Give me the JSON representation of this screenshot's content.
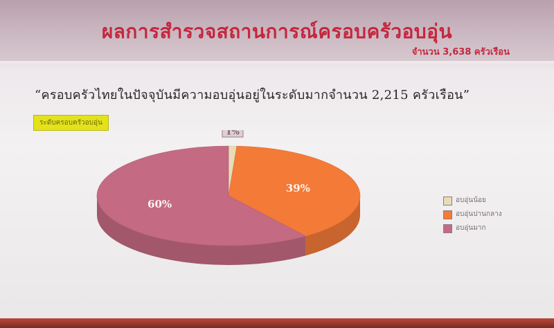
{
  "slide": {
    "title": "ผลการสำรวจสถานการณ์ครอบครัวอบอุ่น",
    "subtitle": "จำนวน 3,638 ครัวเรือน",
    "quote": "“ครอบครัวไทยในปัจจุบันมีความอบอุ่นอยู่ในระดับมากจำนวน  2,215  ครัวเรือน”",
    "chart_tag": "ระดับครอบครัวอบอุ่น"
  },
  "colors": {
    "title": "#c4273d",
    "low": "#e6ddb6",
    "medium": "#f47a37",
    "high": "#c56a83"
  },
  "chart_data": {
    "type": "pie",
    "title": "ระดับครอบครัวอบอุ่น",
    "series": [
      {
        "name": "อบอุ่นน้อย",
        "value": 1,
        "label": "1%",
        "color": "#e6ddb6"
      },
      {
        "name": "อบอุ่นปานกลาง",
        "value": 39,
        "label": "39%",
        "color": "#f47a37"
      },
      {
        "name": "อบอุ่นมาก",
        "value": 60,
        "label": "60%",
        "color": "#c56a83"
      }
    ],
    "legend_position": "right"
  }
}
